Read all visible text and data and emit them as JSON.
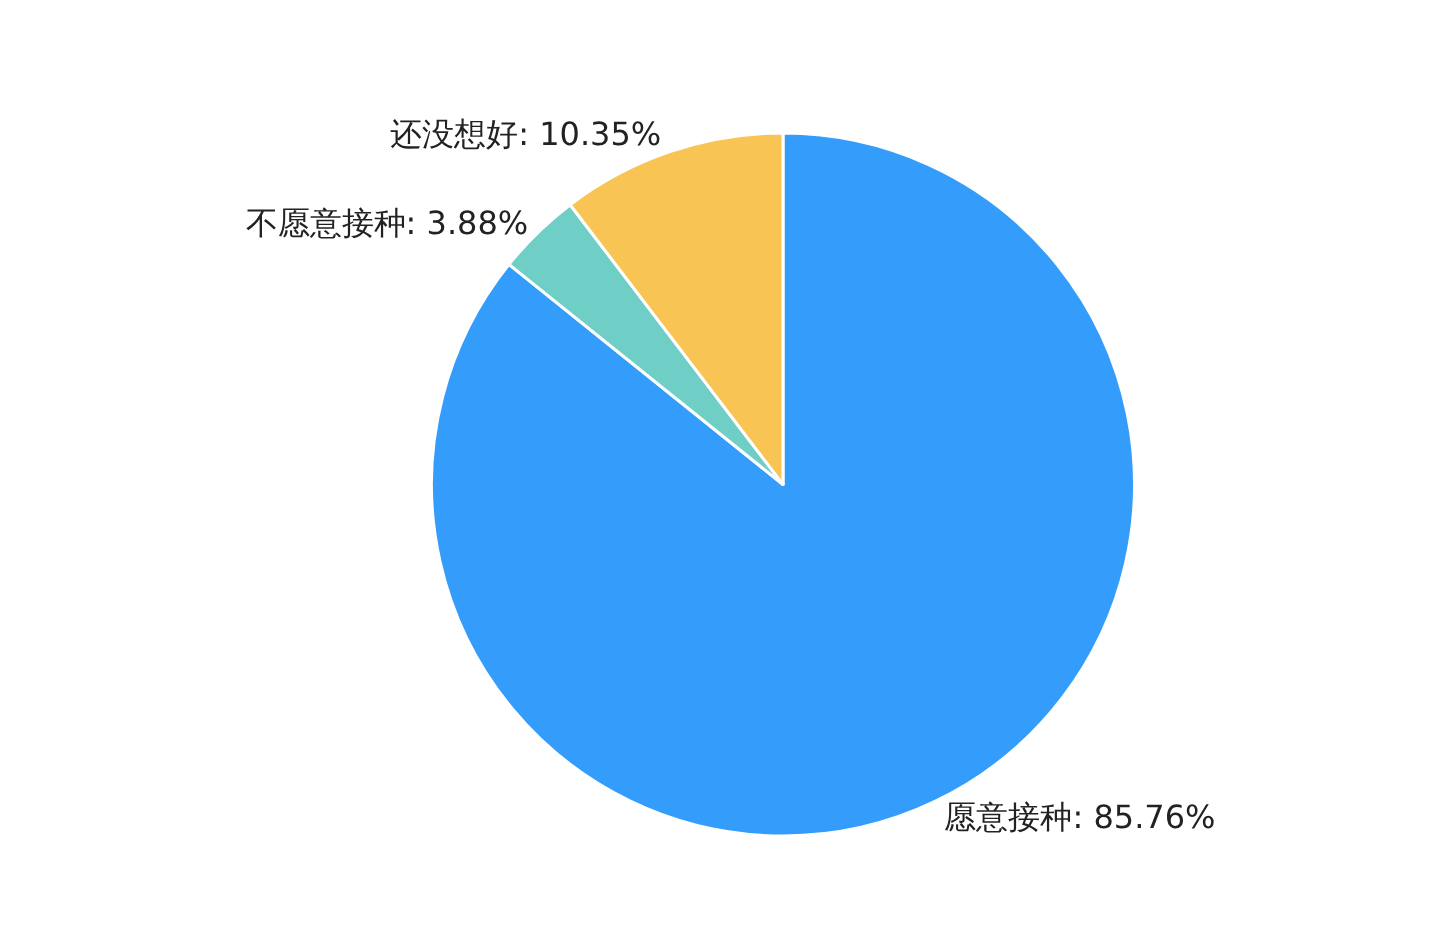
{
  "chart_data": {
    "type": "pie",
    "categories": [
      "愿意接种",
      "不愿意接种",
      "还没想好"
    ],
    "values": [
      85.76,
      3.88,
      10.35
    ],
    "value_labels": [
      "85.76%",
      "3.88%",
      "10.35%"
    ],
    "colors": [
      "#349dfc",
      "#6fcfc7",
      "#f8c453"
    ],
    "legend": false
  }
}
